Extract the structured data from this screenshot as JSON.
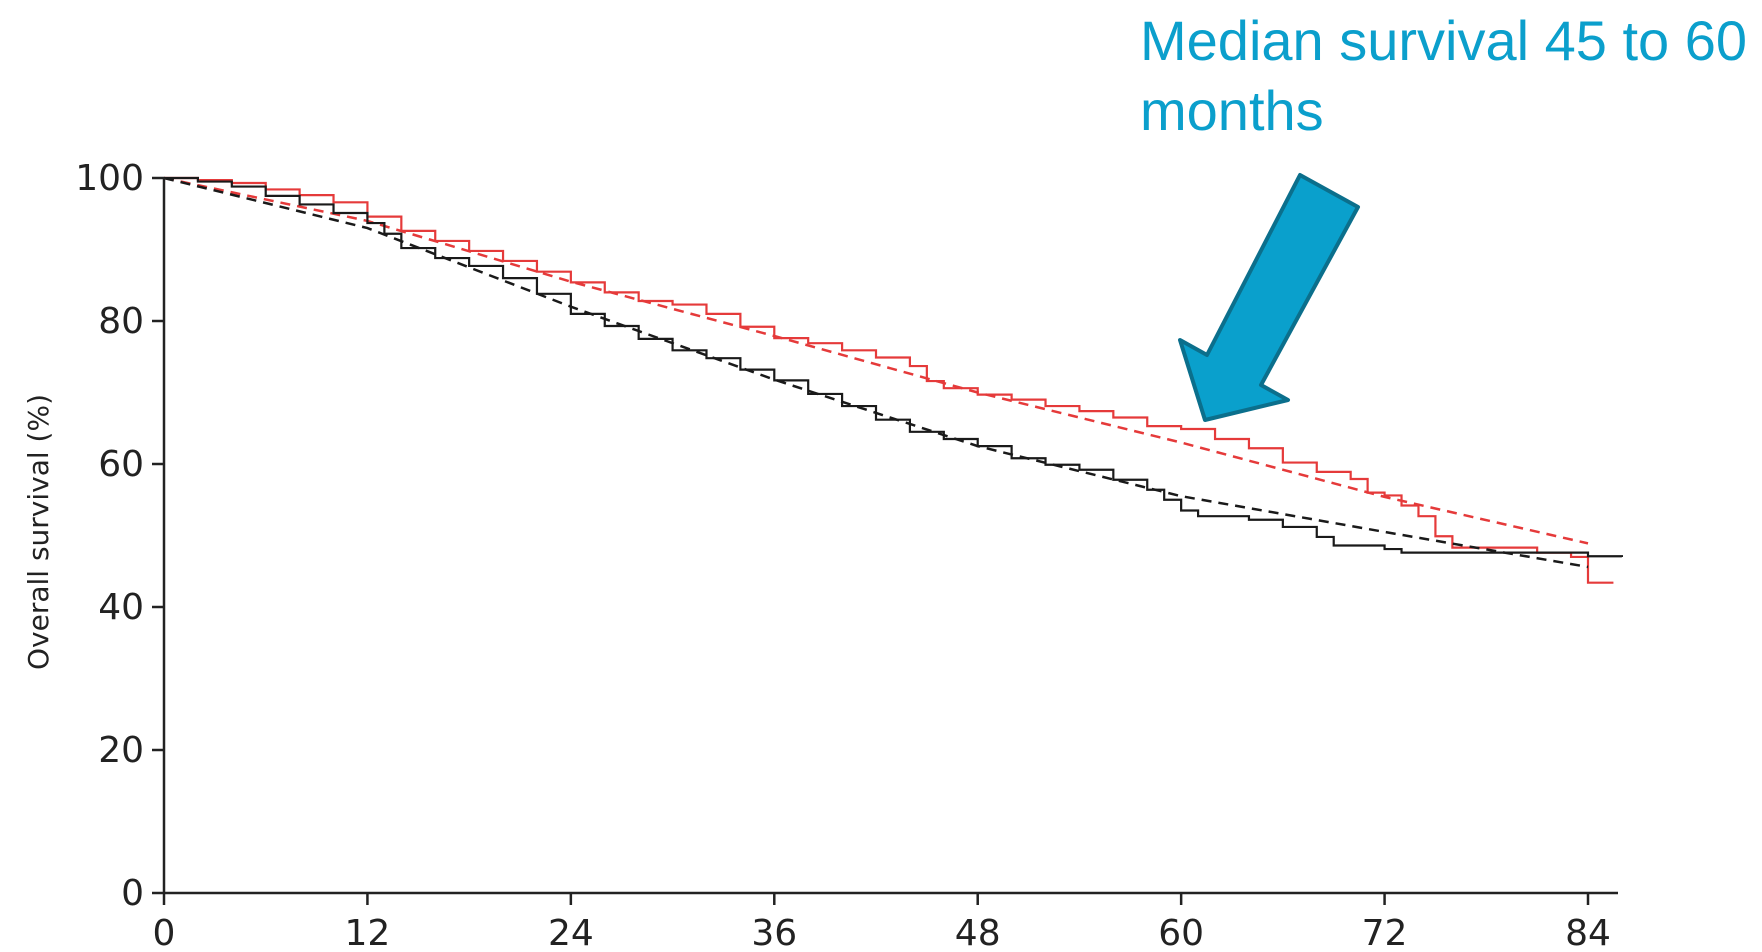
{
  "chart_data": {
    "type": "line",
    "title": "",
    "xlabel": "",
    "ylabel": "Overall survival (%)",
    "xlim": [
      0,
      86
    ],
    "ylim": [
      0,
      100
    ],
    "x_ticks": [
      0,
      12,
      24,
      36,
      48,
      60,
      72,
      84
    ],
    "y_ticks": [
      0,
      20,
      40,
      60,
      80,
      100
    ],
    "grid": false,
    "annotation": "Median survival 45 to 60 months",
    "colors": {
      "red": "#e53a3a",
      "black": "#1a1a1a",
      "arrow_fill": "#0aa0cc",
      "arrow_stroke": "#0b6f8c",
      "annotation": "#0b9fcc"
    },
    "series": [
      {
        "color": "red",
        "style": "step",
        "points": [
          [
            0,
            100
          ],
          [
            2,
            99.7
          ],
          [
            4,
            99.3
          ],
          [
            6,
            98.4
          ],
          [
            8,
            97.6
          ],
          [
            10,
            96.6
          ],
          [
            12,
            94.6
          ],
          [
            14,
            92.6
          ],
          [
            16,
            91.2
          ],
          [
            18,
            89.8
          ],
          [
            20,
            88.4
          ],
          [
            22,
            86.9
          ],
          [
            24,
            85.4
          ],
          [
            26,
            84.0
          ],
          [
            28,
            82.8
          ],
          [
            30,
            82.3
          ],
          [
            32,
            81.0
          ],
          [
            34,
            79.2
          ],
          [
            36,
            77.6
          ],
          [
            38,
            76.9
          ],
          [
            40,
            75.9
          ],
          [
            42,
            74.9
          ],
          [
            44,
            73.7
          ],
          [
            45,
            71.6
          ],
          [
            46,
            70.6
          ],
          [
            48,
            69.7
          ],
          [
            50,
            69.0
          ],
          [
            52,
            68.1
          ],
          [
            54,
            67.4
          ],
          [
            56,
            66.5
          ],
          [
            58,
            65.3
          ],
          [
            60,
            64.9
          ],
          [
            62,
            63.5
          ],
          [
            64,
            62.2
          ],
          [
            66,
            60.2
          ],
          [
            68,
            58.9
          ],
          [
            70,
            57.9
          ],
          [
            71,
            56.0
          ],
          [
            72,
            55.6
          ],
          [
            73,
            54.2
          ],
          [
            74,
            52.7
          ],
          [
            75,
            49.9
          ],
          [
            76,
            48.3
          ],
          [
            80,
            48.3
          ],
          [
            81,
            47.6
          ],
          [
            83,
            47.0
          ],
          [
            84,
            43.4
          ],
          [
            85.5,
            43.4
          ]
        ]
      },
      {
        "color": "red",
        "style": "dashed",
        "points": [
          [
            0,
            100
          ],
          [
            12,
            94.0
          ],
          [
            24,
            85.5
          ],
          [
            36,
            77.9
          ],
          [
            48,
            70.0
          ],
          [
            60,
            63.0
          ],
          [
            72,
            55.4
          ],
          [
            84,
            48.9
          ]
        ]
      },
      {
        "color": "black",
        "style": "step",
        "points": [
          [
            0,
            100
          ],
          [
            2,
            99.5
          ],
          [
            4,
            98.8
          ],
          [
            6,
            97.5
          ],
          [
            8,
            96.3
          ],
          [
            10,
            95.1
          ],
          [
            12,
            93.7
          ],
          [
            13,
            92.2
          ],
          [
            14,
            90.2
          ],
          [
            16,
            88.8
          ],
          [
            18,
            87.7
          ],
          [
            20,
            86.0
          ],
          [
            22,
            83.8
          ],
          [
            24,
            81.0
          ],
          [
            26,
            79.3
          ],
          [
            28,
            77.5
          ],
          [
            30,
            75.9
          ],
          [
            32,
            74.8
          ],
          [
            34,
            73.2
          ],
          [
            36,
            71.7
          ],
          [
            38,
            69.8
          ],
          [
            40,
            68.1
          ],
          [
            42,
            66.2
          ],
          [
            44,
            64.5
          ],
          [
            46,
            63.5
          ],
          [
            48,
            62.5
          ],
          [
            50,
            60.8
          ],
          [
            52,
            59.9
          ],
          [
            54,
            59.2
          ],
          [
            56,
            57.8
          ],
          [
            58,
            56.4
          ],
          [
            59,
            55.0
          ],
          [
            60,
            53.5
          ],
          [
            61,
            52.7
          ],
          [
            64,
            52.2
          ],
          [
            66,
            51.2
          ],
          [
            68,
            49.8
          ],
          [
            69,
            48.6
          ],
          [
            72,
            48.1
          ],
          [
            73,
            47.6
          ],
          [
            84,
            47.1
          ],
          [
            86,
            47.0
          ]
        ]
      },
      {
        "color": "black",
        "style": "dashed",
        "points": [
          [
            0,
            100
          ],
          [
            12,
            93.0
          ],
          [
            24,
            82.0
          ],
          [
            36,
            71.8
          ],
          [
            48,
            62.5
          ],
          [
            60,
            55.5
          ],
          [
            72,
            50.5
          ],
          [
            84,
            45.6
          ]
        ]
      }
    ]
  }
}
